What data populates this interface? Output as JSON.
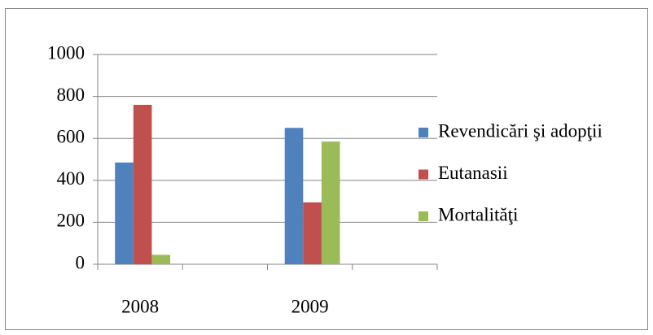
{
  "chart_data": {
    "type": "bar",
    "categories": [
      "2008",
      null,
      "2009",
      null
    ],
    "series": [
      {
        "name": "Revendicări şi adopţii",
        "color": "#4f81bd",
        "values": [
          485,
          null,
          650,
          null
        ]
      },
      {
        "name": "Eutanasii",
        "color": "#c0504d",
        "values": [
          760,
          null,
          295,
          null
        ]
      },
      {
        "name": "Mortalităţi",
        "color": "#9bbb59",
        "values": [
          45,
          null,
          585,
          null
        ]
      }
    ],
    "ylim": [
      0,
      1000
    ],
    "yticks": [
      0,
      200,
      400,
      600,
      800,
      1000
    ],
    "grid": true,
    "legend": "right"
  }
}
